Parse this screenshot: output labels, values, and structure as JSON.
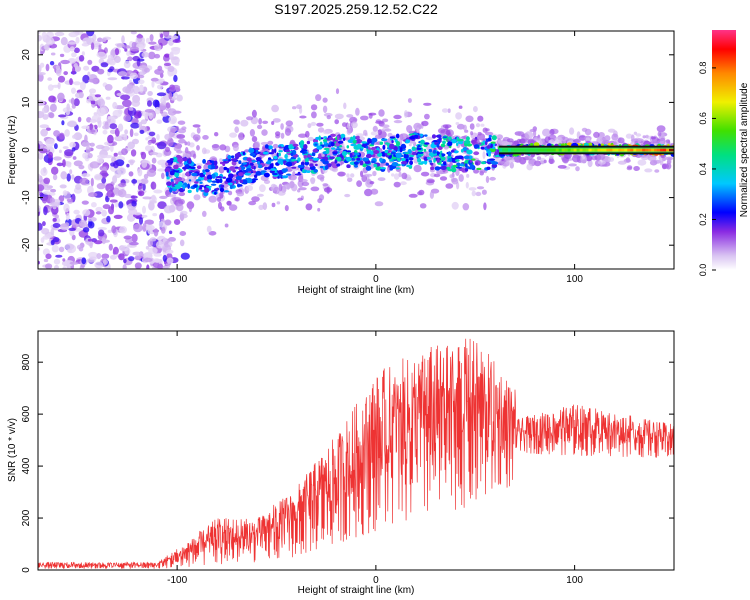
{
  "title": "S197.2025.259.12.52.C22",
  "chart_data": [
    {
      "type": "heatmap",
      "xlabel": "Height of straight line (km)",
      "ylabel": "Frequency (Hz)",
      "xlim": [
        -170,
        150
      ],
      "ylim": [
        -25,
        25
      ],
      "xticks": [
        -100,
        0,
        100
      ],
      "yticks": [
        -20,
        -10,
        0,
        10,
        20
      ],
      "colorbar": {
        "label": "Normalized spectral amplitude",
        "range": [
          0,
          0.95
        ],
        "ticks": [
          0.0,
          0.2,
          0.4,
          0.6,
          0.8
        ]
      },
      "ridge": [
        {
          "x": -100,
          "freq": -5
        },
        {
          "x": -80,
          "freq": -6
        },
        {
          "x": -60,
          "freq": -3
        },
        {
          "x": -40,
          "freq": -2
        },
        {
          "x": -20,
          "freq": 0
        },
        {
          "x": 0,
          "freq": -1
        },
        {
          "x": 20,
          "freq": 0
        },
        {
          "x": 40,
          "freq": -1
        },
        {
          "x": 60,
          "freq": -0.5
        },
        {
          "x": 80,
          "freq": 0.3
        },
        {
          "x": 100,
          "freq": 0.2
        },
        {
          "x": 150,
          "freq": 0
        }
      ],
      "ridge_amplitude": [
        {
          "x": -100,
          "amp": 0.3
        },
        {
          "x": -60,
          "amp": 0.25
        },
        {
          "x": -20,
          "amp": 0.4
        },
        {
          "x": 20,
          "amp": 0.35
        },
        {
          "x": 60,
          "amp": 0.5
        },
        {
          "x": 100,
          "amp": 0.7
        },
        {
          "x": 150,
          "amp": 0.95
        }
      ]
    },
    {
      "type": "line",
      "xlabel": "Height of straight line (km)",
      "ylabel": "SNR (10 * v/v)",
      "xlim": [
        -170,
        150
      ],
      "ylim": [
        0,
        920
      ],
      "xticks": [
        -100,
        0,
        100
      ],
      "yticks": [
        0,
        200,
        400,
        600,
        800
      ],
      "color": "#ee3333",
      "envelope": [
        {
          "x": -170,
          "min": 5,
          "max": 30
        },
        {
          "x": -110,
          "min": 5,
          "max": 30
        },
        {
          "x": -95,
          "min": 10,
          "max": 110
        },
        {
          "x": -80,
          "min": 20,
          "max": 200
        },
        {
          "x": -60,
          "min": 30,
          "max": 200
        },
        {
          "x": -40,
          "min": 50,
          "max": 320
        },
        {
          "x": -20,
          "min": 100,
          "max": 520
        },
        {
          "x": 0,
          "min": 150,
          "max": 760
        },
        {
          "x": 25,
          "min": 200,
          "max": 860
        },
        {
          "x": 50,
          "min": 250,
          "max": 900
        },
        {
          "x": 70,
          "min": 330,
          "max": 700
        },
        {
          "x": 71,
          "min": 450,
          "max": 580
        },
        {
          "x": 100,
          "min": 440,
          "max": 640
        },
        {
          "x": 150,
          "min": 430,
          "max": 560
        }
      ]
    }
  ]
}
